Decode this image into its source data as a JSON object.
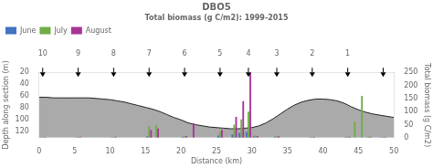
{
  "chart_data": {
    "type": "bar",
    "title": "DBO5",
    "subtitle": "Total biomass (g C/m2): 1999-2015",
    "x_label": "Distance (km)",
    "y_label": "Depth along section (m)",
    "y2_label": "Total biomass (g C/m2)",
    "xlim": [
      0,
      50
    ],
    "xticks": [
      0,
      5,
      10,
      15,
      20,
      25,
      30,
      35,
      40,
      45,
      50
    ],
    "x2ticks": [
      {
        "value": 0.5,
        "label": "10"
      },
      {
        "value": 5.5,
        "label": "9"
      },
      {
        "value": 10.5,
        "label": "8"
      },
      {
        "value": 15.5,
        "label": "7"
      },
      {
        "value": 20.5,
        "label": "6"
      },
      {
        "value": 25.5,
        "label": "5"
      },
      {
        "value": 29.5,
        "label": "4"
      },
      {
        "value": 33.5,
        "label": "3"
      },
      {
        "value": 38.5,
        "label": "2"
      },
      {
        "value": 43.5,
        "label": "1"
      },
      {
        "value": 48.5,
        "label": null
      }
    ],
    "ylim": [
      130,
      20
    ],
    "yticks": [
      20,
      40,
      60,
      80,
      100,
      120
    ],
    "y2lim": [
      0,
      250
    ],
    "y2ticks": [
      0,
      50,
      100,
      150,
      200,
      250
    ],
    "grid": false,
    "legend": "upper left",
    "series": [
      {
        "type": "area",
        "axis": "y",
        "color": "#aaaaaa",
        "x": [
          0,
          1,
          2,
          3,
          4,
          5,
          6,
          7,
          8,
          9,
          10,
          11,
          12,
          13,
          14,
          15,
          16,
          17,
          18,
          19,
          20,
          21,
          22,
          23,
          24,
          25,
          26,
          27,
          28,
          29,
          30,
          31,
          32,
          33,
          34,
          35,
          36,
          37,
          38,
          39,
          40,
          41,
          42,
          43,
          44,
          45,
          46,
          47,
          48,
          49,
          50
        ],
        "values": [
          62,
          62,
          63,
          63,
          63,
          63,
          63,
          63,
          64,
          65,
          66,
          68,
          70,
          73,
          76,
          79,
          82,
          86,
          91,
          96,
          100,
          105,
          108,
          110,
          112,
          113,
          114,
          115,
          115,
          114,
          113,
          110,
          105,
          98,
          90,
          82,
          75,
          70,
          67,
          65,
          65,
          66,
          68,
          72,
          78,
          83,
          87,
          90,
          92,
          94,
          96
        ]
      },
      {
        "name": "June",
        "type": "bar",
        "axis": "y2",
        "color": "#4472c4",
        "x": [
          0.5,
          5.5,
          10.5,
          15.5,
          20.5,
          25.5,
          27.5,
          28.5,
          29.5,
          30.5,
          33.5,
          38.5,
          43.5,
          46.5,
          48.5
        ],
        "values": [
          2,
          2,
          2,
          5,
          4,
          8,
          12,
          18,
          22,
          5,
          4,
          2,
          3,
          2,
          2
        ]
      },
      {
        "name": "July",
        "type": "bar",
        "axis": "y2",
        "color": "#70ad47",
        "x": [
          0.5,
          5.5,
          10.5,
          15.5,
          16.5,
          20.5,
          25.5,
          27.5,
          28.5,
          29.5,
          30.5,
          33.5,
          38.5,
          43.5,
          44.5,
          45.5,
          46.5,
          48.5
        ],
        "values": [
          2,
          3,
          2,
          45,
          50,
          5,
          25,
          50,
          70,
          100,
          8,
          5,
          4,
          4,
          60,
          160,
          5,
          3
        ]
      },
      {
        "name": "August",
        "type": "bar",
        "axis": "y2",
        "color": "#a83498",
        "x": [
          0.5,
          5.5,
          10.5,
          15.5,
          16.5,
          20.5,
          21.5,
          25.5,
          27.5,
          28.5,
          29.5,
          30.5,
          33.5,
          38.5,
          43.5,
          46.5,
          48.5
        ],
        "values": [
          3,
          4,
          4,
          30,
          35,
          6,
          55,
          30,
          80,
          140,
          248,
          6,
          5,
          3,
          4,
          3,
          3
        ]
      }
    ]
  }
}
